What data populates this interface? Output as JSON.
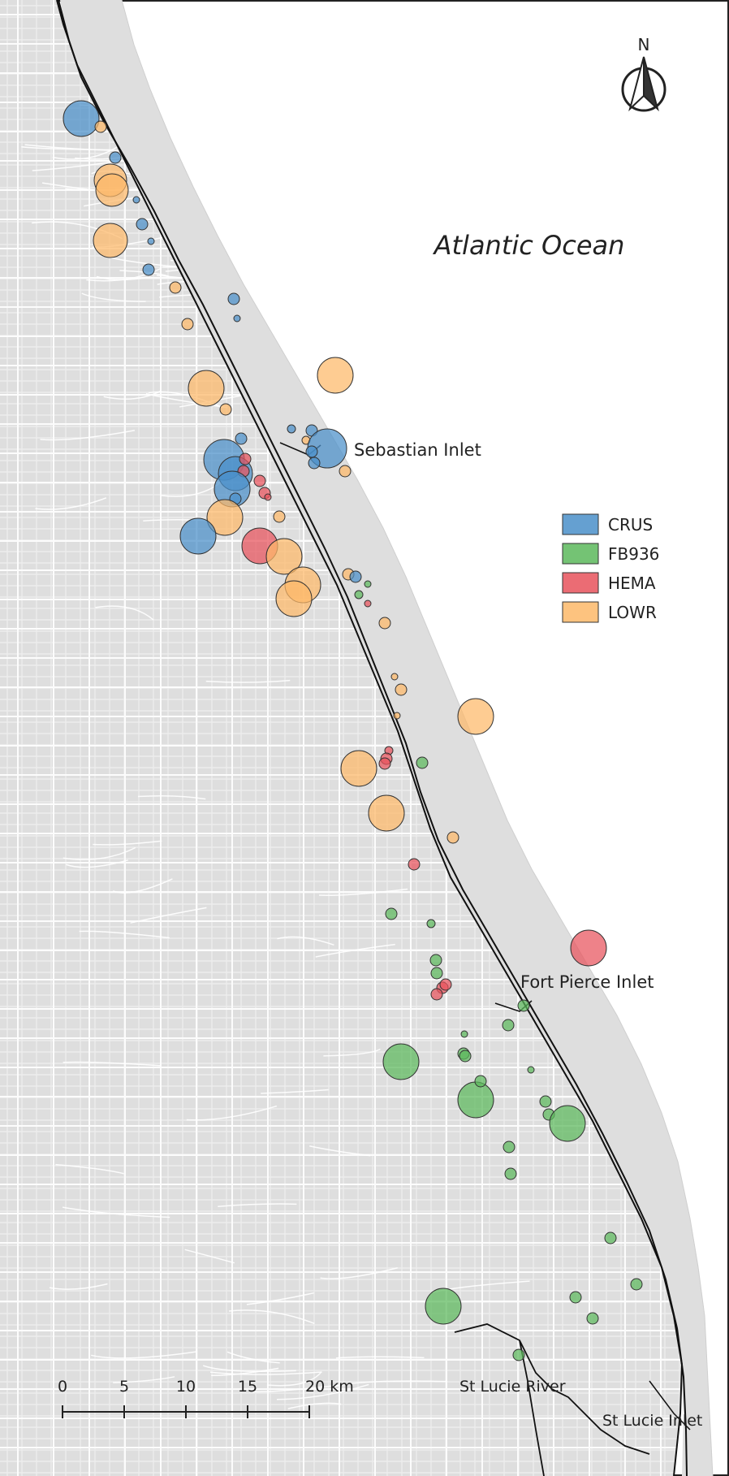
{
  "map": {
    "ocean_label": "Atlantic Ocean",
    "north_label": "N",
    "places": [
      {
        "id": "sebastian",
        "label": "Sebastian Inlet"
      },
      {
        "id": "fortpierce",
        "label": "Fort Pierce Inlet"
      },
      {
        "id": "stlucie-river",
        "label": "St Lucie River"
      },
      {
        "id": "stlucie-inlet",
        "label": "St Lucie Inlet"
      }
    ],
    "legend": [
      {
        "code": "CRUS",
        "label": "CRUS",
        "color": "#4a8fc9"
      },
      {
        "code": "FB936",
        "label": "FB936",
        "color": "#5cb85c"
      },
      {
        "code": "HEMA",
        "label": "HEMA",
        "color": "#e8525c"
      },
      {
        "code": "LOWR",
        "label": "LOWR",
        "color": "#fdb868"
      }
    ],
    "scale_bar": {
      "ticks": [
        "0",
        "5",
        "10",
        "15",
        "20 km"
      ]
    },
    "colors": {
      "land": "#dedede",
      "roads": "#ffffff",
      "water": "#ffffff",
      "coastline": "#111111"
    }
  }
}
